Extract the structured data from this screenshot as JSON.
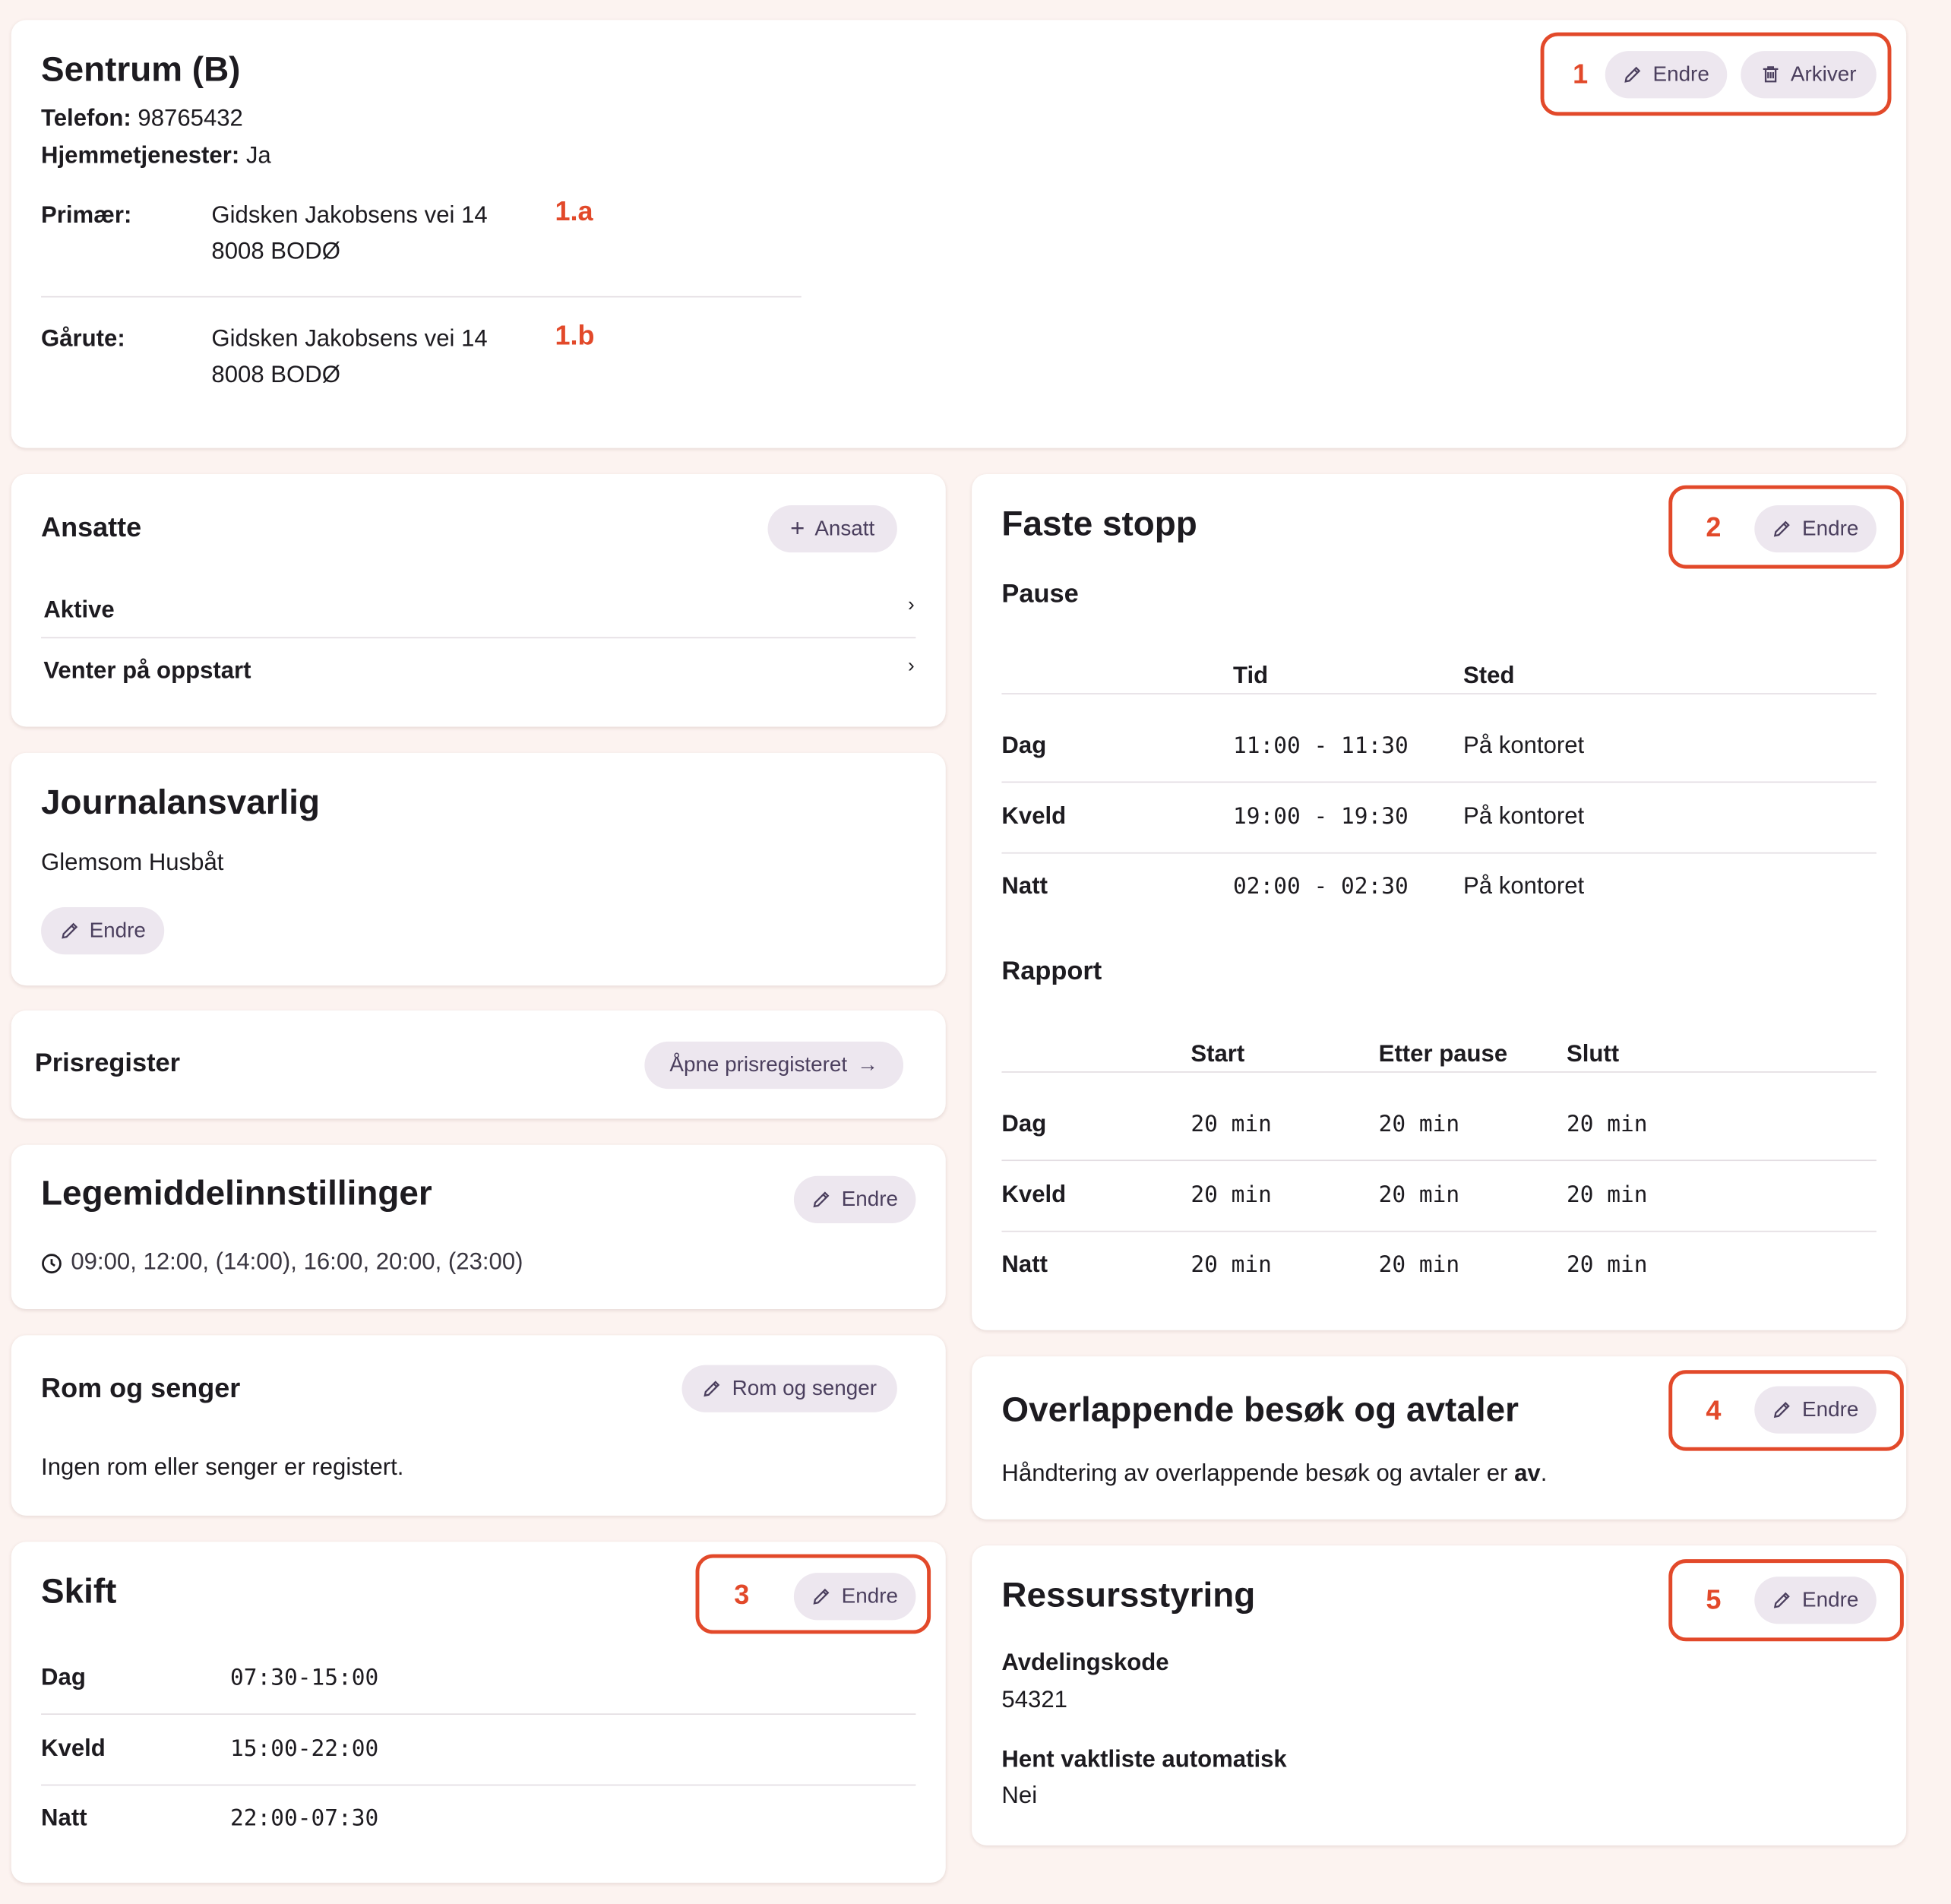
{
  "header": {
    "title": "Sentrum (B)",
    "phone_label": "Telefon:",
    "phone": "98765432",
    "home_services_label": "Hjemmetjenester:",
    "home_services": "Ja",
    "annotation": "1",
    "buttons": [
      "Endre",
      "Arkiver"
    ],
    "addresses": [
      {
        "label": "Primær:",
        "lines": [
          "Gidsken Jakobsens vei 14",
          "8008 BODØ"
        ],
        "annotation": "1.a"
      },
      {
        "label": "Gårute:",
        "lines": [
          "Gidsken Jakobsens vei 14",
          "8008 BODØ"
        ],
        "annotation": "1.b"
      }
    ]
  },
  "employees": {
    "title": "Ansatte",
    "button": "Ansatt",
    "items": [
      "Aktive",
      "Venter på oppstart"
    ]
  },
  "journal": {
    "title": "Journalansvarlig",
    "name": "Glemsom Husbåt",
    "button": "Endre"
  },
  "prices": {
    "title": "Prisregister",
    "button": "Åpne prisregisteret"
  },
  "medication": {
    "title": "Legemiddelinnstillinger",
    "button": "Endre",
    "times": "09:00, 12:00, (14:00), 16:00, 20:00, (23:00)"
  },
  "rooms": {
    "title": "Rom og senger",
    "button": "Rom og senger",
    "text": "Ingen rom eller senger er registert."
  },
  "shifts": {
    "title": "Skift",
    "annotation": "3",
    "button": "Endre",
    "rows": [
      [
        "Dag",
        "07:30-15:00"
      ],
      [
        "Kveld",
        "15:00-22:00"
      ],
      [
        "Natt",
        "22:00-07:30"
      ]
    ]
  },
  "stops": {
    "title": "Faste stopp",
    "annotation": "2",
    "button": "Endre",
    "pause": {
      "title": "Pause",
      "headers": [
        "Tid",
        "Sted"
      ],
      "rows": [
        [
          "Dag",
          "11:00 - 11:30",
          "På kontoret"
        ],
        [
          "Kveld",
          "19:00 - 19:30",
          "På kontoret"
        ],
        [
          "Natt",
          "02:00 - 02:30",
          "På kontoret"
        ]
      ]
    },
    "report": {
      "title": "Rapport",
      "headers": [
        "Start",
        "Etter pause",
        "Slutt"
      ],
      "rows": [
        [
          "Dag",
          "20 min",
          "20 min",
          "20 min"
        ],
        [
          "Kveld",
          "20 min",
          "20 min",
          "20 min"
        ],
        [
          "Natt",
          "20 min",
          "20 min",
          "20 min"
        ]
      ]
    }
  },
  "overlap": {
    "title": "Overlappende besøk og avtaler",
    "annotation": "4",
    "button": "Endre",
    "text_before": "Håndtering av overlappende besøk og avtaler er ",
    "text_bold": "av",
    "text_after": "."
  },
  "resources": {
    "title": "Ressursstyring",
    "annotation": "5",
    "button": "Endre",
    "fields": [
      {
        "label": "Avdelingskode",
        "value": "54321"
      },
      {
        "label": "Hent vaktliste automatisk",
        "value": "Nei"
      }
    ]
  }
}
